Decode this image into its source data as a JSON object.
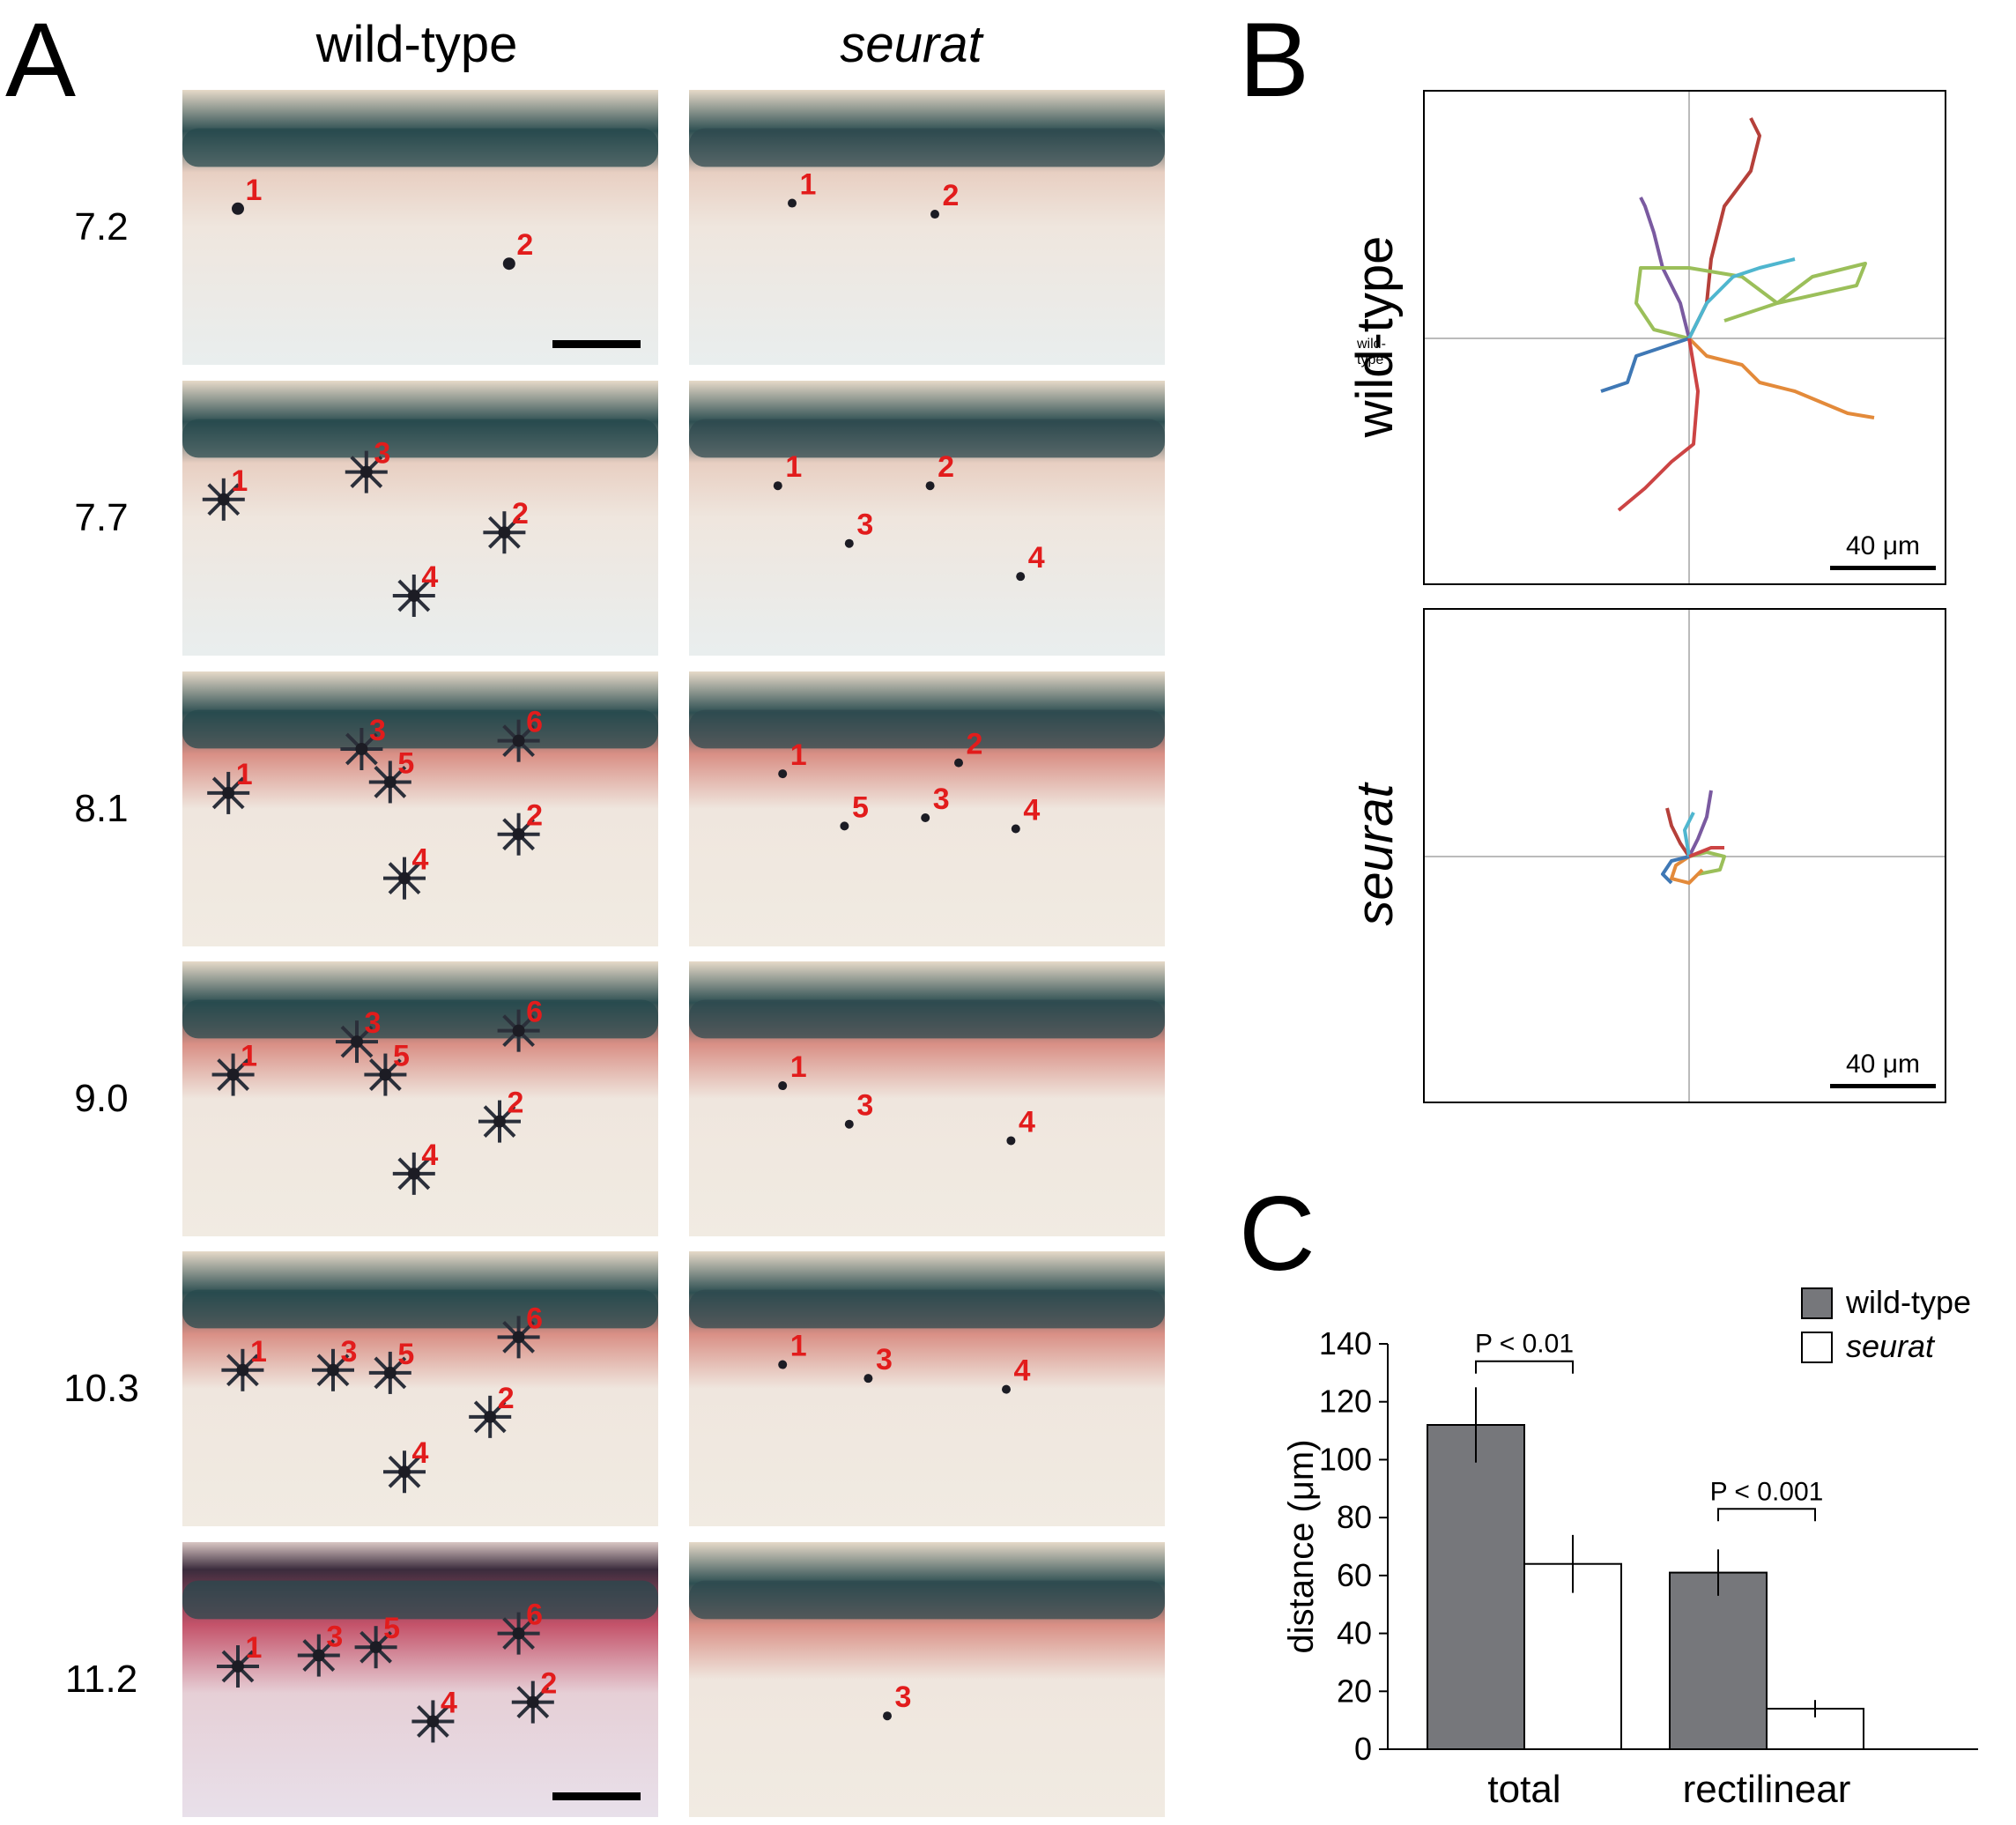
{
  "panels": {
    "a": "A",
    "b": "B",
    "c": "C"
  },
  "panel_a": {
    "columns": [
      {
        "label": "wild-type",
        "italic": false
      },
      {
        "label": "seurat",
        "italic": true
      }
    ],
    "rows": [
      {
        "label": "7.2",
        "wt": [
          "1",
          "2"
        ],
        "mut": [
          "1",
          "2"
        ]
      },
      {
        "label": "7.7",
        "wt": [
          "1",
          "3",
          "2",
          "4"
        ],
        "mut": [
          "1",
          "2",
          "3",
          "4"
        ]
      },
      {
        "label": "8.1",
        "wt": [
          "3",
          "6",
          "5",
          "1",
          "2",
          "4"
        ],
        "mut": [
          "1",
          "2",
          "5",
          "3",
          "4"
        ]
      },
      {
        "label": "9.0",
        "wt": [
          "3",
          "6",
          "5",
          "1",
          "2",
          "4"
        ],
        "mut": [
          "1",
          "3",
          "4"
        ]
      },
      {
        "label": "10.3",
        "wt": [
          "6",
          "1",
          "3",
          "5",
          "2",
          "4"
        ],
        "mut": [
          "1",
          "3",
          "4"
        ]
      },
      {
        "label": "11.2",
        "wt": [
          "1",
          "3",
          "5",
          "6",
          "4",
          "2"
        ],
        "mut": [
          "3"
        ]
      }
    ]
  },
  "panel_b": {
    "plots": [
      {
        "label": "wild-type",
        "italic": false,
        "scale_bar": "40 μm"
      },
      {
        "label": "seurat",
        "italic": true,
        "scale_bar": "40 μm"
      }
    ],
    "track_colors": [
      "#b5403a",
      "#7a5aa0",
      "#9bbf5a",
      "#e38a3a",
      "#3f78b5",
      "#4fb6cf",
      "#cc4444"
    ]
  },
  "chart_data": {
    "type": "bar",
    "categories": [
      "total",
      "rectilinear"
    ],
    "series": [
      {
        "name": "wild-type",
        "values": [
          112,
          61
        ],
        "errors": [
          13,
          8
        ],
        "color": "#76777b"
      },
      {
        "name": "seurat",
        "values": [
          64,
          14
        ],
        "errors": [
          10,
          3
        ],
        "color": "#ffffff"
      }
    ],
    "ylabel": "distance (μm)",
    "ylim": [
      0,
      140
    ],
    "yticks": [
      0,
      20,
      40,
      60,
      80,
      100,
      120,
      140
    ],
    "significance": [
      {
        "label": "P < 0.01",
        "category": "total",
        "y": 134
      },
      {
        "label": "P < 0.001",
        "category": "rectilinear",
        "y": 83
      }
    ],
    "legend_position": "top-right"
  }
}
